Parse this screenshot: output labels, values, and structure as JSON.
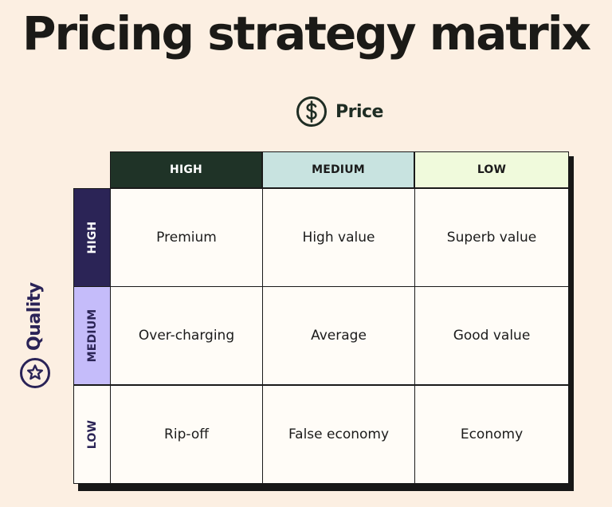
{
  "title": "Pricing strategy matrix",
  "axes": {
    "price": {
      "label": "Price",
      "icon": "dollar-circle-icon"
    },
    "quality": {
      "label": "Quality",
      "icon": "star-circle-icon"
    }
  },
  "columns": [
    {
      "label": "HIGH",
      "bg": "#1f3327",
      "fg": "#ffffff"
    },
    {
      "label": "MEDIUM",
      "bg": "#c8e3e0",
      "fg": "#1b1b1b"
    },
    {
      "label": "LOW",
      "bg": "#f0fadc",
      "fg": "#1b1b1b"
    }
  ],
  "rows": [
    {
      "label": "HIGH",
      "bg": "#2b2456",
      "fg": "#ffffff"
    },
    {
      "label": "MEDIUM",
      "bg": "#c5bcfa",
      "fg": "#2b2456"
    },
    {
      "label": "LOW",
      "bg": "#fffcf7",
      "fg": "#2b2456"
    }
  ],
  "cells": [
    [
      "Premium",
      "High value",
      "Superb value"
    ],
    [
      "Over-charging",
      "Average",
      "Good value"
    ],
    [
      "Rip-off",
      "False economy",
      "Economy"
    ]
  ],
  "colors": {
    "background": "#fcefe2",
    "border": "#1a1a1a",
    "shadow": "#171717"
  }
}
